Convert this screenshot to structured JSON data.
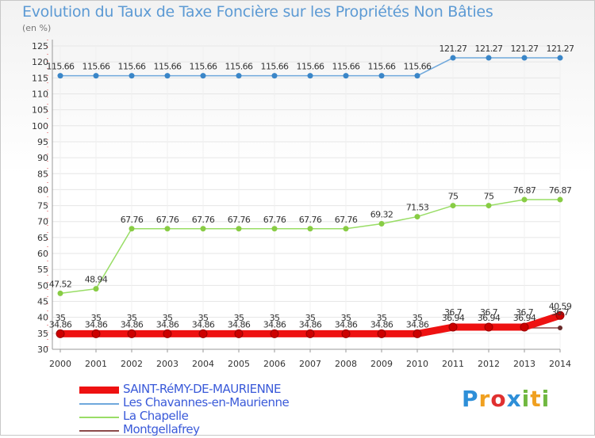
{
  "title": "Evolution du Taux de Taxe Foncière sur les Propriétés Non Bâties",
  "unit": "(en %)",
  "logo": {
    "letters": [
      "P",
      "r",
      "o",
      "x",
      "i",
      "t",
      "i"
    ],
    "colors": [
      "#2e8fd8",
      "#f0a020",
      "#e03030",
      "#2e8fd8",
      "#70b840",
      "#f0a020",
      "#70b840"
    ]
  },
  "chart_data": {
    "type": "line",
    "title": "Evolution du Taux de Taxe Foncière sur les Propriétés Non Bâties",
    "ylabel": "(en %)",
    "xlabel": "",
    "x": [
      "2000",
      "2001",
      "2002",
      "2003",
      "2004",
      "2005",
      "2006",
      "2007",
      "2008",
      "2009",
      "2010",
      "2011",
      "2012",
      "2013",
      "2014"
    ],
    "ylim": [
      30,
      125
    ],
    "yticks": [
      30,
      35,
      40,
      45,
      50,
      55,
      60,
      65,
      70,
      75,
      80,
      85,
      90,
      95,
      100,
      105,
      110,
      115,
      120,
      125
    ],
    "grid": "horizontal",
    "series": [
      {
        "name": "SAINT-RéMY-DE-MAURIENNE",
        "color": "#ee1111",
        "values": [
          34.86,
          34.86,
          34.86,
          34.86,
          34.86,
          34.86,
          34.86,
          34.86,
          34.86,
          34.86,
          34.86,
          36.94,
          36.94,
          36.94,
          40.59
        ],
        "labels": [
          "34.86",
          "34.86",
          "34.86",
          "34.86",
          "34.86",
          "34.86",
          "34.86",
          "34.86",
          "34.86",
          "34.86",
          "34.86",
          "36.94",
          "36.94",
          "36.94",
          "40.59"
        ]
      },
      {
        "name": "Les Chavannes-en-Maurienne",
        "color": "#6fa8dc",
        "values": [
          115.66,
          115.66,
          115.66,
          115.66,
          115.66,
          115.66,
          115.66,
          115.66,
          115.66,
          115.66,
          115.66,
          121.27,
          121.27,
          121.27,
          121.27
        ],
        "labels": [
          "115.66",
          "115.66",
          "115.66",
          "115.66",
          "115.66",
          "115.66",
          "115.66",
          "115.66",
          "115.66",
          "115.66",
          "115.66",
          "121.27",
          "121.27",
          "121.27",
          "121.27"
        ]
      },
      {
        "name": "La Chapelle",
        "color": "#99dd66",
        "values": [
          47.52,
          48.94,
          67.76,
          67.76,
          67.76,
          67.76,
          67.76,
          67.76,
          67.76,
          69.32,
          71.53,
          75,
          75,
          76.87,
          76.87
        ],
        "labels": [
          "47.52",
          "48.94",
          "67.76",
          "67.76",
          "67.76",
          "67.76",
          "67.76",
          "67.76",
          "67.76",
          "69.32",
          "71.53",
          "75",
          "75",
          "76.87",
          "76.87"
        ]
      },
      {
        "name": "Montgellafrey",
        "color": "#8b4a4a",
        "values": [
          35,
          35,
          35,
          35,
          35,
          35,
          35,
          35,
          35,
          35,
          35,
          36.7,
          36.7,
          36.7,
          36.7
        ],
        "labels": [
          "35",
          "35",
          "35",
          "35",
          "35",
          "35",
          "35",
          "35",
          "35",
          "35",
          "35",
          "36.7",
          "36.7",
          "36.7",
          "36.7"
        ]
      }
    ]
  }
}
